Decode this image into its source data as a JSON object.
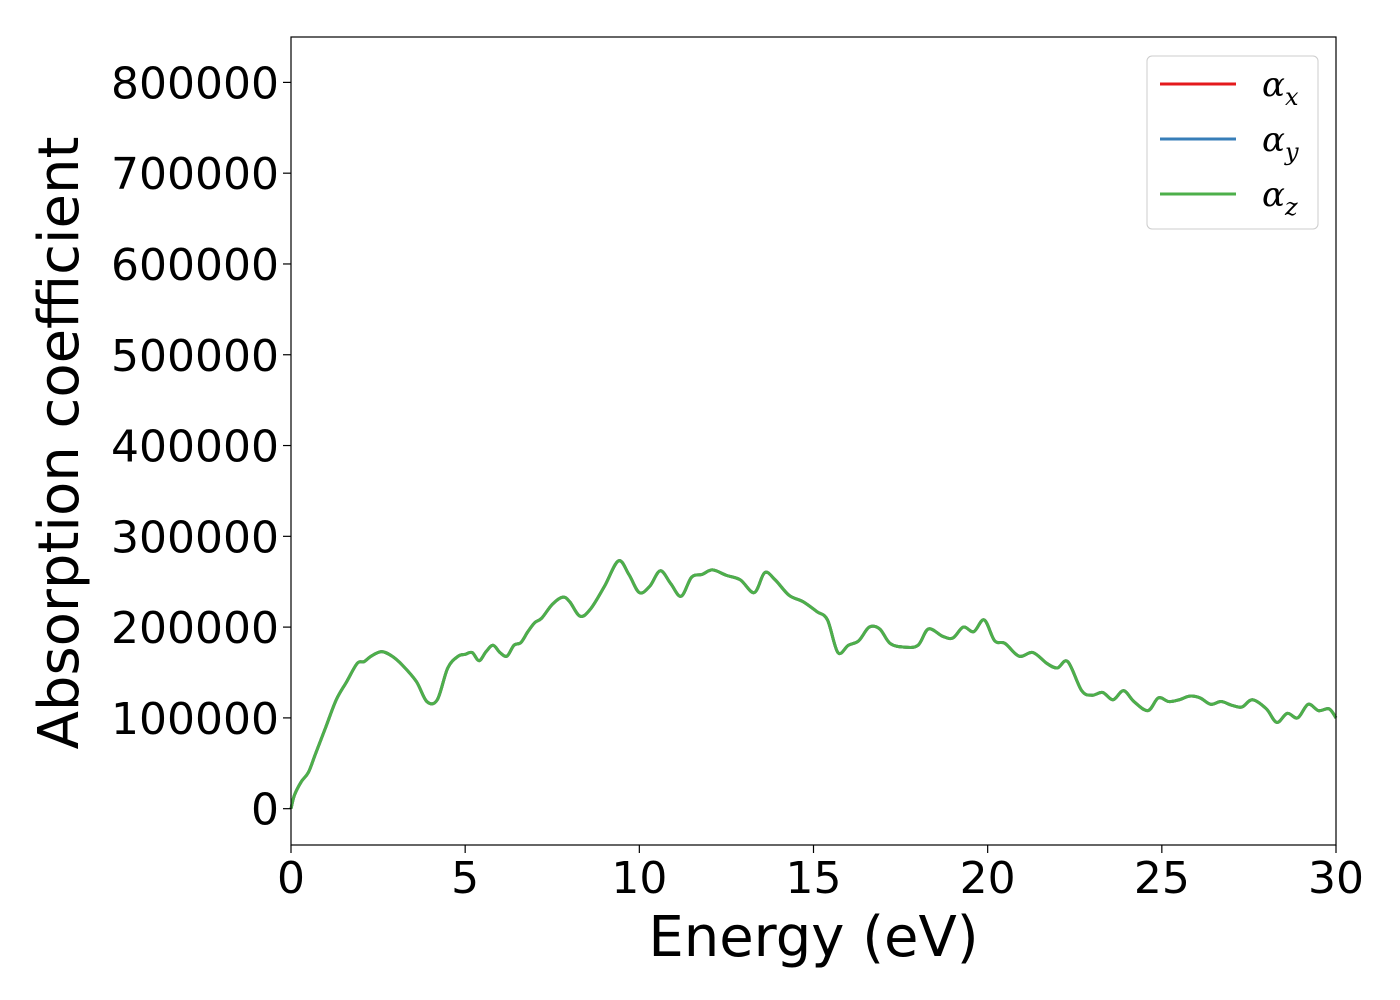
{
  "chart_data": {
    "type": "line",
    "title": "",
    "xlabel": "Energy (eV)",
    "ylabel": "Absorption coefficient",
    "xlim": [
      0,
      30
    ],
    "ylim": [
      -40000,
      850000
    ],
    "xticks": [
      0,
      5,
      10,
      15,
      20,
      25,
      30
    ],
    "yticks": [
      0,
      100000,
      200000,
      300000,
      400000,
      500000,
      600000,
      700000,
      800000
    ],
    "xtick_labels": [
      "0",
      "5",
      "10",
      "15",
      "20",
      "25",
      "30"
    ],
    "ytick_labels": [
      "0",
      "100000",
      "200000",
      "300000",
      "400000",
      "500000",
      "600000",
      "700000",
      "800000"
    ],
    "grid": false,
    "legend_position": "top-right",
    "x": [
      0,
      0.1,
      0.3,
      0.5,
      0.7,
      1.0,
      1.3,
      1.6,
      1.9,
      2.1,
      2.3,
      2.6,
      2.9,
      3.2,
      3.6,
      3.9,
      4.2,
      4.5,
      4.8,
      5.0,
      5.2,
      5.4,
      5.6,
      5.8,
      6.0,
      6.2,
      6.4,
      6.6,
      6.8,
      7.0,
      7.2,
      7.5,
      7.8,
      8.0,
      8.3,
      8.6,
      9.0,
      9.4,
      9.7,
      10.0,
      10.3,
      10.6,
      10.9,
      11.2,
      11.5,
      11.8,
      12.1,
      12.5,
      12.9,
      13.3,
      13.6,
      13.9,
      14.3,
      14.7,
      15.1,
      15.4,
      15.7,
      16.0,
      16.3,
      16.6,
      16.9,
      17.2,
      17.6,
      18.0,
      18.3,
      18.7,
      19.0,
      19.3,
      19.6,
      19.9,
      20.2,
      20.5,
      20.9,
      21.3,
      21.7,
      22.0,
      22.3,
      22.7,
      23.0,
      23.3,
      23.6,
      23.9,
      24.2,
      24.6,
      24.9,
      25.2,
      25.5,
      25.8,
      26.1,
      26.4,
      26.7,
      27.0,
      27.3,
      27.6,
      28.0,
      28.3,
      28.6,
      28.9,
      29.2,
      29.5,
      29.8,
      30.0
    ],
    "series": [
      {
        "name": "αx",
        "color": "#e41a1c",
        "y": [
          0,
          15000,
          30000,
          40000,
          60000,
          90000,
          120000,
          140000,
          160000,
          162000,
          168000,
          173000,
          168000,
          158000,
          140000,
          118000,
          120000,
          155000,
          168000,
          170000,
          172000,
          163000,
          173000,
          180000,
          172000,
          168000,
          180000,
          183000,
          195000,
          205000,
          210000,
          225000,
          233000,
          228000,
          212000,
          220000,
          245000,
          273000,
          258000,
          238000,
          245000,
          262000,
          248000,
          234000,
          255000,
          258000,
          263000,
          257000,
          252000,
          238000,
          260000,
          252000,
          235000,
          228000,
          217000,
          208000,
          172000,
          180000,
          185000,
          200000,
          198000,
          182000,
          178000,
          180000,
          198000,
          190000,
          188000,
          200000,
          195000,
          208000,
          185000,
          182000,
          168000,
          172000,
          160000,
          155000,
          162000,
          130000,
          125000,
          128000,
          120000,
          130000,
          118000,
          108000,
          122000,
          118000,
          120000,
          124000,
          122000,
          115000,
          118000,
          114000,
          112000,
          120000,
          110000,
          95000,
          105000,
          100000,
          115000,
          108000,
          110000,
          100000
        ]
      },
      {
        "name": "αy",
        "color": "#377eb8",
        "y": [
          0,
          15000,
          30000,
          40000,
          60000,
          90000,
          120000,
          140000,
          160000,
          162000,
          168000,
          173000,
          168000,
          158000,
          140000,
          118000,
          120000,
          155000,
          168000,
          170000,
          172000,
          163000,
          173000,
          180000,
          172000,
          168000,
          180000,
          183000,
          195000,
          205000,
          210000,
          225000,
          233000,
          228000,
          212000,
          220000,
          245000,
          273000,
          258000,
          238000,
          245000,
          262000,
          248000,
          234000,
          255000,
          258000,
          263000,
          257000,
          252000,
          238000,
          260000,
          252000,
          235000,
          228000,
          217000,
          208000,
          172000,
          180000,
          185000,
          200000,
          198000,
          182000,
          178000,
          180000,
          198000,
          190000,
          188000,
          200000,
          195000,
          208000,
          185000,
          182000,
          168000,
          172000,
          160000,
          155000,
          162000,
          130000,
          125000,
          128000,
          120000,
          130000,
          118000,
          108000,
          122000,
          118000,
          120000,
          124000,
          122000,
          115000,
          118000,
          114000,
          112000,
          120000,
          110000,
          95000,
          105000,
          100000,
          115000,
          108000,
          110000,
          100000
        ]
      },
      {
        "name": "αz",
        "color": "#4daf4a",
        "y": [
          0,
          15000,
          30000,
          40000,
          60000,
          90000,
          120000,
          140000,
          160000,
          162000,
          168000,
          173000,
          168000,
          158000,
          140000,
          118000,
          120000,
          155000,
          168000,
          170000,
          172000,
          163000,
          173000,
          180000,
          172000,
          168000,
          180000,
          183000,
          195000,
          205000,
          210000,
          225000,
          233000,
          228000,
          212000,
          220000,
          245000,
          273000,
          258000,
          238000,
          245000,
          262000,
          248000,
          234000,
          255000,
          258000,
          263000,
          257000,
          252000,
          238000,
          260000,
          252000,
          235000,
          228000,
          217000,
          208000,
          172000,
          180000,
          185000,
          200000,
          198000,
          182000,
          178000,
          180000,
          198000,
          190000,
          188000,
          200000,
          195000,
          208000,
          185000,
          182000,
          168000,
          172000,
          160000,
          155000,
          162000,
          130000,
          125000,
          128000,
          120000,
          130000,
          118000,
          108000,
          122000,
          118000,
          120000,
          124000,
          122000,
          115000,
          118000,
          114000,
          112000,
          120000,
          110000,
          95000,
          105000,
          100000,
          115000,
          108000,
          110000,
          100000
        ]
      }
    ],
    "legend": [
      {
        "base": "α",
        "sub": "x",
        "color": "#e41a1c"
      },
      {
        "base": "α",
        "sub": "y",
        "color": "#377eb8"
      },
      {
        "base": "α",
        "sub": "z",
        "color": "#4daf4a"
      }
    ]
  }
}
